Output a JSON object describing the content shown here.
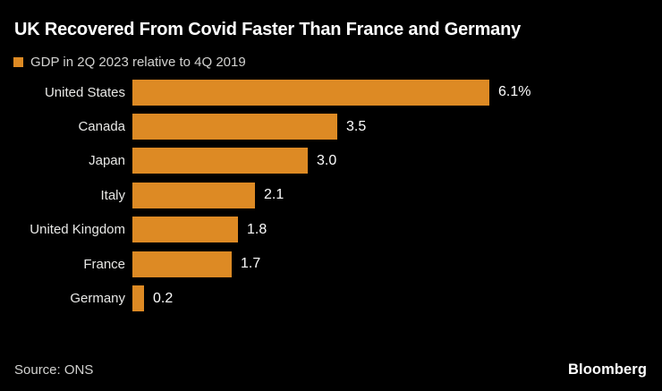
{
  "colors": {
    "background": "#000000",
    "bar": "#DD8A24",
    "title_text": "#ffffff",
    "label_text": "#e8e8e6",
    "muted_text": "#d2d2d0"
  },
  "chart_data": {
    "type": "bar",
    "orientation": "horizontal",
    "title": "UK Recovered From Covid Faster Than France and Germany",
    "legend": "GDP in 2Q 2023 relative to 4Q 2019",
    "categories": [
      "United States",
      "Canada",
      "Japan",
      "Italy",
      "United Kingdom",
      "France",
      "Germany"
    ],
    "values": [
      6.1,
      3.5,
      3.0,
      2.1,
      1.8,
      1.7,
      0.2
    ],
    "value_labels": [
      "6.1%",
      "3.5",
      "3.0",
      "2.1",
      "1.8",
      "1.7",
      "0.2"
    ],
    "xlim": [
      0,
      6.1
    ],
    "grid": false,
    "legend_position": "top-left",
    "bar_color": "#DD8A24"
  },
  "footer": {
    "source": "Source: ONS",
    "brand": "Bloomberg"
  }
}
